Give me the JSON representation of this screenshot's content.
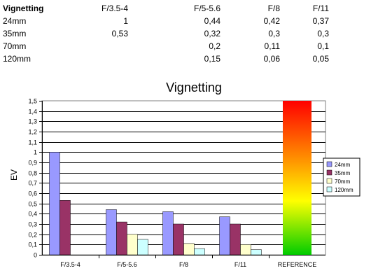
{
  "table": {
    "header": [
      "Vignetting",
      "F/3.5-4",
      "F/5-5.6",
      "F/8",
      "F/11"
    ],
    "rows": [
      [
        "24mm",
        "1",
        "0,44",
        "0,42",
        "0,37"
      ],
      [
        "35mm",
        "0,53",
        "0,32",
        "0,3",
        "0,3"
      ],
      [
        "70mm",
        "",
        "0,2",
        "0,11",
        "0,1"
      ],
      [
        "120mm",
        "",
        "0,15",
        "0,06",
        "0,05"
      ]
    ]
  },
  "chart_data": {
    "type": "bar",
    "title": "Vignetting",
    "xlabel": "",
    "ylabel": "EV",
    "ylim": [
      0,
      1.5
    ],
    "ytick_step": 0.1,
    "ytick_labels": [
      "0",
      "0,1",
      "0,2",
      "0,3",
      "0,4",
      "0,5",
      "0,6",
      "0,7",
      "0,8",
      "0,9",
      "1",
      "1,1",
      "1,2",
      "1,3",
      "1,4",
      "1,5"
    ],
    "categories": [
      "F/3.5-4",
      "F/5-5.6",
      "F/8",
      "F/11",
      "REFERENCE"
    ],
    "series": [
      {
        "name": "24mm",
        "color": "#9999ff",
        "values": [
          1,
          0.44,
          0.42,
          0.37,
          null
        ]
      },
      {
        "name": "35mm",
        "color": "#993366",
        "values": [
          0.53,
          0.32,
          0.3,
          0.3,
          null
        ]
      },
      {
        "name": "70mm",
        "color": "#ffffcc",
        "values": [
          null,
          0.2,
          0.11,
          0.1,
          null
        ]
      },
      {
        "name": "120mm",
        "color": "#ccffff",
        "values": [
          null,
          0.15,
          0.06,
          0.05,
          null
        ]
      }
    ],
    "reference": {
      "category": "REFERENCE",
      "value": 1.5,
      "gradient": [
        "#ff0000",
        "#ff9900",
        "#ffff00",
        "#00cc00"
      ]
    },
    "grid": true,
    "legend_position": "right"
  }
}
